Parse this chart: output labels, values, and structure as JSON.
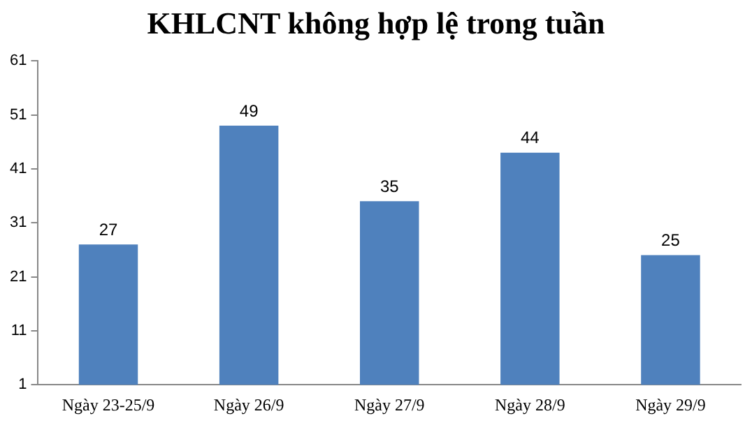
{
  "chart_data": {
    "type": "bar",
    "title": "KHLCNT không hợp lệ trong tuần",
    "categories": [
      "Ngày 23-25/9",
      "Ngày 26/9",
      "Ngày 27/9",
      "Ngày 28/9",
      "Ngày 29/9"
    ],
    "values": [
      27,
      49,
      35,
      44,
      25
    ],
    "color": "#4f81bd",
    "ylim": [
      1,
      61
    ],
    "yticks": [
      1,
      11,
      21,
      31,
      41,
      51,
      61
    ],
    "grid": false,
    "data_labels": true
  }
}
